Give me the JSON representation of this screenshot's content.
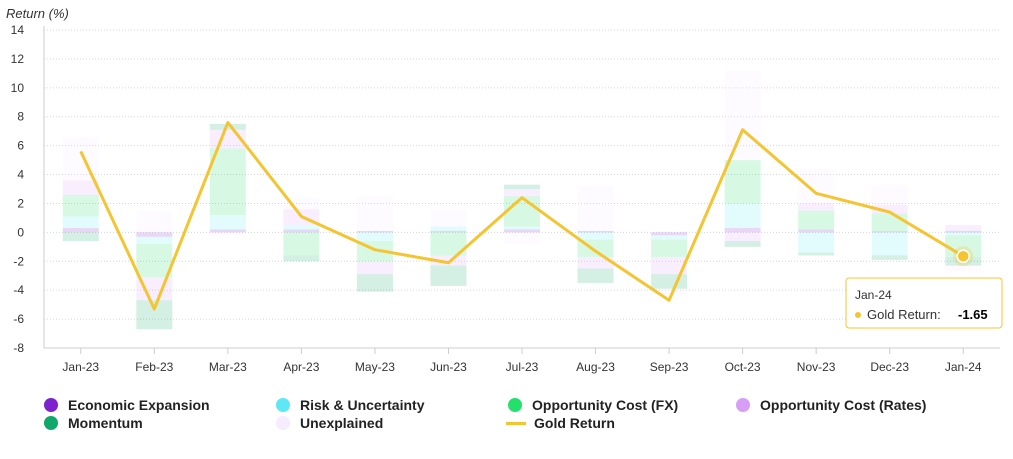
{
  "chart_data": {
    "type": "bar",
    "ylabel": "Return (%)",
    "ylim": [
      -8,
      14
    ],
    "ytick_step": 2,
    "grid": true,
    "legend_placement": "bottom",
    "categories": [
      "Jan-23",
      "Feb-23",
      "Mar-23",
      "Apr-23",
      "May-23",
      "Jun-23",
      "Jul-23",
      "Aug-23",
      "Sep-23",
      "Oct-23",
      "Nov-23",
      "Dec-23",
      "Jan-24"
    ],
    "stacked": true,
    "bar_series": [
      {
        "name": "Economic Expansion",
        "color": "#7e22ce",
        "values": [
          0.3,
          -0.3,
          0.2,
          0.2,
          0.1,
          0.1,
          0.2,
          0.1,
          -0.2,
          0.3,
          0.2,
          0.1,
          0.1
        ]
      },
      {
        "name": "Risk & Uncertainty",
        "color": "#5ee7f5",
        "values": [
          0.8,
          -0.5,
          1.0,
          0.3,
          -0.6,
          0.3,
          0.2,
          -0.5,
          -0.3,
          1.7,
          -1.4,
          -1.6,
          -0.2
        ]
      },
      {
        "name": "Opportunity Cost (FX)",
        "color": "#22e06b",
        "values": [
          1.5,
          -2.3,
          4.6,
          -1.6,
          -1.4,
          -1.6,
          2.1,
          -1.2,
          -1.2,
          3.0,
          1.3,
          1.2,
          -1.5
        ]
      },
      {
        "name": "Opportunity Cost (Rates)",
        "color": "#d79ef5",
        "values": [
          1.0,
          -1.6,
          1.3,
          1.1,
          -0.9,
          -0.7,
          0.5,
          -0.8,
          -1.2,
          -0.6,
          0.5,
          0.6,
          0.4
        ]
      },
      {
        "name": "Momentum",
        "color": "#10a86a",
        "values": [
          -0.6,
          -2.0,
          0.4,
          -0.4,
          -1.2,
          -1.4,
          0.3,
          -1.0,
          -1.0,
          -0.4,
          -0.2,
          -0.3,
          -0.6
        ]
      },
      {
        "name": "Unexplained",
        "color": "#f6ebff",
        "values": [
          3.0,
          1.5,
          -0.2,
          0.8,
          2.4,
          1.2,
          -0.8,
          3.1,
          -0.4,
          6.2,
          2.4,
          1.4,
          -0.4
        ]
      }
    ],
    "line_series": {
      "name": "Gold Return",
      "color": "#f5c431",
      "values": [
        5.6,
        -5.3,
        7.6,
        1.1,
        -1.2,
        -2.1,
        2.4,
        -1.3,
        -4.7,
        7.1,
        2.7,
        1.4,
        -1.65
      ]
    },
    "tooltip": {
      "category": "Jan-24",
      "series": "Gold Return",
      "value": "-1.65"
    }
  },
  "legend": [
    {
      "label": "Economic Expansion",
      "color": "#7e22ce",
      "kind": "circle"
    },
    {
      "label": "Risk & Uncertainty",
      "color": "#5ee7f5",
      "kind": "circle"
    },
    {
      "label": "Opportunity Cost (FX)",
      "color": "#22e06b",
      "kind": "circle"
    },
    {
      "label": "Opportunity Cost (Rates)",
      "color": "#d79ef5",
      "kind": "circle"
    },
    {
      "label": "Momentum",
      "color": "#10a86a",
      "kind": "circle"
    },
    {
      "label": "Unexplained",
      "color": "#f6ebff",
      "kind": "circle"
    },
    {
      "label": "Gold Return",
      "color": "#f5c431",
      "kind": "line"
    }
  ]
}
